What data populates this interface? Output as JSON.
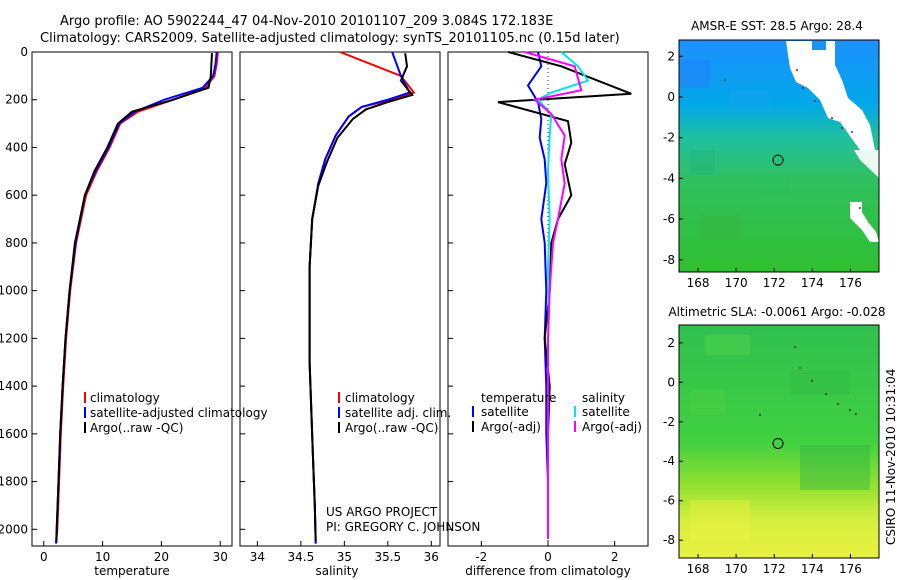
{
  "header": {
    "line1": "Argo profile: AO 5902244_47 04-Nov-2010 20101107_209 3.084S 172.183E",
    "line2": "Climatology: CARS2009. Satellite-adjusted climatology: synTS_20101105.nc (0.15d later)"
  },
  "colors": {
    "climatology": "#ff0000",
    "satellite": "#0000ff",
    "argo": "#000000",
    "sat_diff_sal": "#00e5ee",
    "argo_diff_sal": "#ff00ff"
  },
  "depth_ticks": [
    "0",
    "200",
    "400",
    "600",
    "800",
    "1000",
    "1200",
    "1400",
    "1600",
    "1800",
    "2000"
  ],
  "chart_data": [
    {
      "type": "line",
      "title": "",
      "xlabel": "temperature",
      "ylabel": "",
      "xlim": [
        -2,
        32
      ],
      "ylim": [
        2070,
        0
      ],
      "xticks": [
        "0",
        "10",
        "20",
        "30"
      ],
      "yticks": [
        "0",
        "200",
        "400",
        "600",
        "800",
        "1000",
        "1200",
        "1400",
        "1600",
        "1800",
        "2000"
      ],
      "legend": [
        "climatology",
        "satellite-adjusted climatology",
        "Argo(..raw -QC)"
      ],
      "series": [
        {
          "name": "climatology",
          "color": "#ff0000",
          "x": [
            29.6,
            29.4,
            29.0,
            27.5,
            22.0,
            16.0,
            13.0,
            11.2,
            9.0,
            7.2,
            5.5,
            4.5,
            3.8,
            3.3,
            2.9,
            2.6,
            2.3,
            2.1
          ],
          "y": [
            0,
            50,
            100,
            150,
            200,
            250,
            300,
            400,
            500,
            600,
            800,
            1000,
            1200,
            1400,
            1600,
            1800,
            2000,
            2060
          ]
        },
        {
          "name": "satellite",
          "color": "#0000ff",
          "x": [
            29.4,
            29.2,
            28.8,
            27.0,
            20.5,
            15.5,
            12.8,
            11.0,
            8.8,
            7.0,
            5.4,
            4.4,
            3.7,
            3.2,
            2.8,
            2.5,
            2.2,
            2.1
          ],
          "y": [
            0,
            50,
            100,
            150,
            200,
            250,
            300,
            400,
            500,
            600,
            800,
            1000,
            1200,
            1400,
            1600,
            1800,
            2000,
            2060
          ]
        },
        {
          "name": "argo",
          "color": "#000000",
          "x": [
            28.6,
            28.5,
            28.4,
            28.0,
            22.0,
            15.0,
            12.6,
            10.8,
            8.6,
            7.0,
            5.3,
            4.4,
            3.7,
            3.2,
            2.8,
            2.5,
            2.2,
            2.15
          ],
          "y": [
            5,
            50,
            100,
            150,
            200,
            250,
            300,
            400,
            500,
            600,
            800,
            1000,
            1200,
            1400,
            1600,
            1800,
            2000,
            2050
          ]
        }
      ]
    },
    {
      "type": "line",
      "title": "",
      "xlabel": "salinity",
      "ylabel": "",
      "xlim": [
        33.8,
        36.1
      ],
      "ylim": [
        2070,
        0
      ],
      "xticks": [
        "34",
        "34.5",
        "35",
        "35.5",
        "36"
      ],
      "legend": [
        "climatology",
        "satellite adj. clim.",
        "Argo(..raw -QC)"
      ],
      "credits": [
        "US ARGO PROJECT",
        "PI: GREGORY C. JOHNSON"
      ],
      "series": [
        {
          "name": "climatology",
          "color": "#ff0000",
          "x": [
            34.95,
            35.3,
            35.65,
            35.8,
            35.55,
            35.2,
            35.05,
            34.9,
            34.78,
            34.7,
            34.63,
            34.6,
            34.6,
            34.6,
            34.62,
            34.64,
            34.66,
            34.67
          ],
          "y": [
            0,
            50,
            100,
            170,
            200,
            230,
            270,
            350,
            450,
            550,
            700,
            900,
            1100,
            1300,
            1500,
            1700,
            1900,
            2060
          ]
        },
        {
          "name": "satellite",
          "color": "#0000ff",
          "x": [
            35.55,
            35.6,
            35.65,
            35.75,
            35.5,
            35.2,
            35.05,
            34.9,
            34.78,
            34.7,
            34.63,
            34.6,
            34.6,
            34.6,
            34.62,
            34.64,
            34.66,
            34.67
          ],
          "y": [
            0,
            50,
            100,
            170,
            200,
            230,
            270,
            350,
            450,
            550,
            700,
            900,
            1100,
            1300,
            1500,
            1700,
            1900,
            2060
          ]
        },
        {
          "name": "argo",
          "color": "#000000",
          "x": [
            35.7,
            35.72,
            35.65,
            35.78,
            35.5,
            35.25,
            35.1,
            34.92,
            34.8,
            34.7,
            34.63,
            34.6,
            34.6,
            34.6,
            34.62,
            34.64,
            34.66,
            34.67
          ],
          "y": [
            5,
            60,
            120,
            180,
            210,
            240,
            280,
            360,
            460,
            560,
            700,
            900,
            1100,
            1300,
            1500,
            1700,
            1900,
            2050
          ]
        }
      ]
    },
    {
      "type": "line",
      "title": "",
      "xlabel": "difference from climatology",
      "ylabel": "",
      "xlim": [
        -3,
        3
      ],
      "ylim": [
        2070,
        0
      ],
      "xticks": [
        "-2",
        "0",
        "2"
      ],
      "legend": {
        "temperature_header": "temperature",
        "salinity_header": "salinity",
        "temp_items": [
          "satellite",
          "Argo(-adj)"
        ],
        "sal_items": [
          "satellite",
          "Argo(-adj)"
        ]
      },
      "series": [
        {
          "name": "temperature satellite",
          "color": "#0000ff",
          "x": [
            -0.3,
            -0.2,
            -0.6,
            -0.3,
            -0.2,
            -0.25,
            -0.1,
            -0.05,
            -0.2,
            -0.1,
            -0.05,
            -0.1,
            -0.05,
            -0.05,
            0,
            0
          ],
          "y": [
            0,
            60,
            140,
            210,
            280,
            360,
            450,
            550,
            700,
            800,
            1000,
            1200,
            1400,
            1600,
            1800,
            2040
          ]
        },
        {
          "name": "temperature Argo(-adj)",
          "color": "#000000",
          "x": [
            -1.2,
            0.4,
            2.5,
            -1.5,
            0.6,
            0.7,
            0.5,
            0.7,
            0.3,
            0.1,
            0.05,
            -0.1,
            0.05,
            0,
            0,
            0
          ],
          "y": [
            0,
            60,
            175,
            210,
            290,
            380,
            470,
            600,
            700,
            800,
            1000,
            1200,
            1400,
            1600,
            1800,
            2040
          ]
        },
        {
          "name": "salinity satellite",
          "color": "#00e5ee",
          "x": [
            0.4,
            0.9,
            1.2,
            0.1,
            -0.3,
            0.1,
            0.05,
            0.0,
            0.05,
            0.0,
            0.02,
            0.0,
            0.0,
            0.0,
            0.0,
            0.0
          ],
          "y": [
            0,
            60,
            120,
            170,
            200,
            260,
            350,
            500,
            700,
            900,
            1100,
            1300,
            1500,
            1700,
            1900,
            2040
          ]
        },
        {
          "name": "salinity Argo(-adj)",
          "color": "#ff00ff",
          "x": [
            -0.7,
            0.8,
            1.0,
            -0.4,
            0.1,
            0.5,
            0.4,
            0.5,
            0.3,
            0.15,
            0.05,
            0.0,
            0.0,
            0.0,
            0.0,
            0.0
          ],
          "y": [
            0,
            60,
            160,
            200,
            260,
            350,
            450,
            550,
            700,
            800,
            1000,
            1200,
            1400,
            1600,
            1800,
            2040
          ]
        }
      ]
    },
    {
      "type": "heatmap",
      "title": "AMSR-E SST: 28.5 Argo: 28.4",
      "xlim": [
        167,
        177.5
      ],
      "ylim": [
        -8.6,
        2.8
      ],
      "xticks": [
        "168",
        "170",
        "172",
        "174",
        "176"
      ],
      "yticks": [
        "2",
        "0",
        "-2",
        "-4",
        "-6",
        "-8"
      ],
      "marker": [
        172.2,
        -3.1
      ]
    },
    {
      "type": "heatmap",
      "title": "Altimetric SLA: -0.0061 Argo: -0.028",
      "xlim": [
        167,
        177.5
      ],
      "ylim": [
        -8.9,
        2.9
      ],
      "xticks": [
        "168",
        "170",
        "172",
        "174",
        "176"
      ],
      "yticks": [
        "2",
        "0",
        "-2",
        "-4",
        "-6",
        "-8"
      ],
      "marker": [
        172.2,
        -3.1
      ]
    }
  ],
  "footer_stamp": "CSIRO 11-Nov-2010 10:31:04"
}
